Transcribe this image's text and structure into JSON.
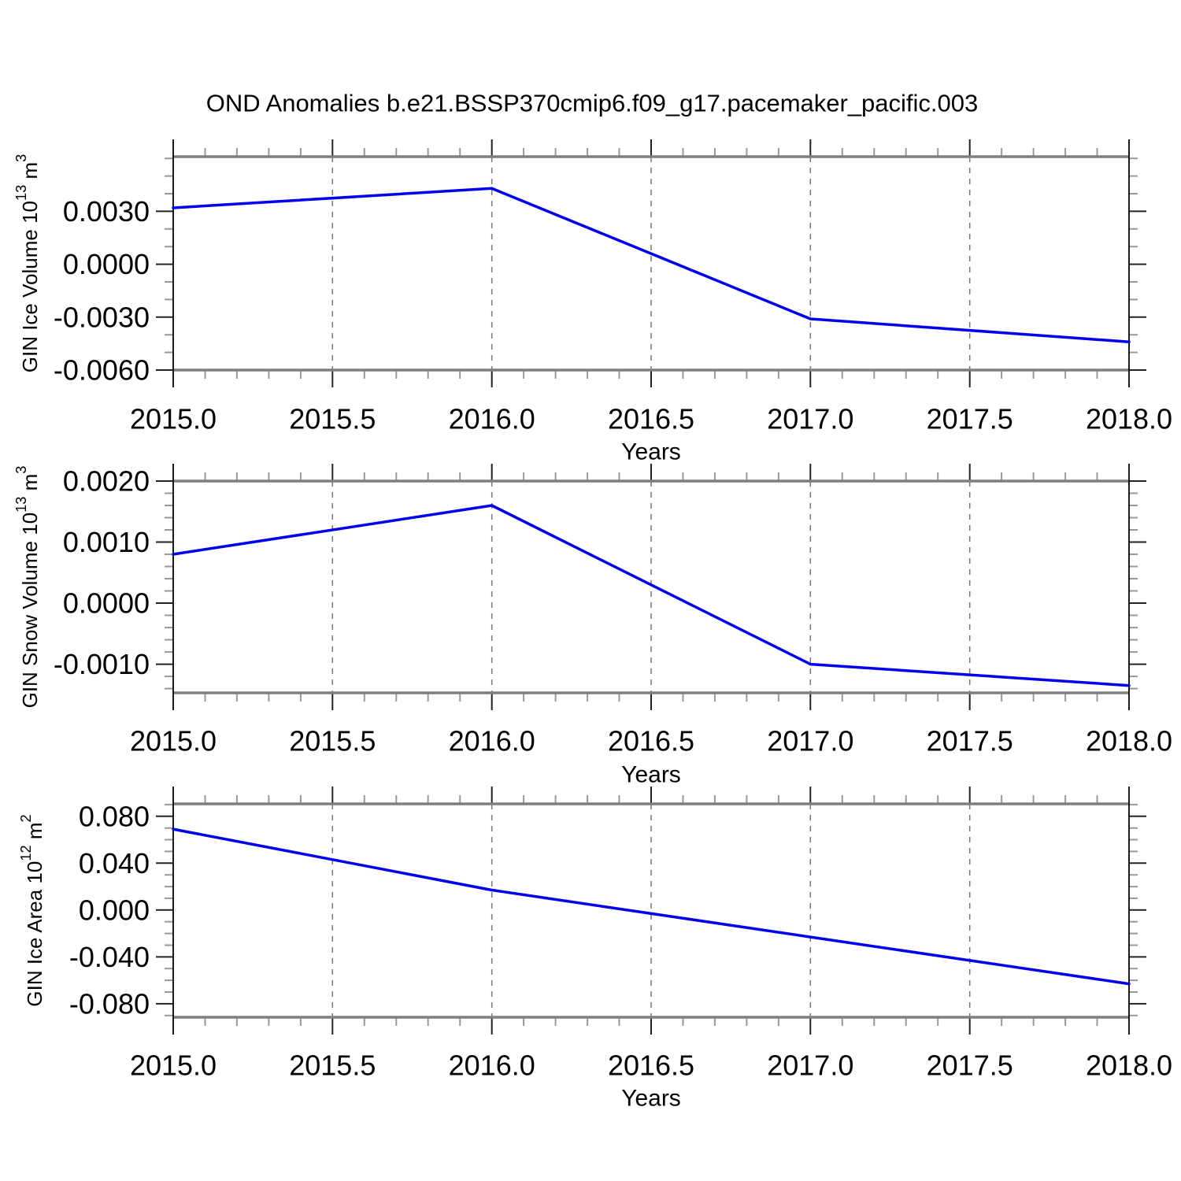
{
  "title": "OND Anomalies b.e21.BSSP370cmip6.f09_g17.pacemaker_pacific.003",
  "colors": {
    "line": "#0000ee",
    "grid": "#777777",
    "border": "#7f7f7f",
    "axis": "#1a1a1a",
    "tick_major": "#222222",
    "tick_minor": "#999999",
    "text": "#000000",
    "background": "#ffffff"
  },
  "x_axis": {
    "label": "Years",
    "min": 2015.0,
    "max": 2018.0,
    "major_step": 0.5,
    "minor_step": 0.1,
    "tick_labels": [
      "2015.0",
      "2015.5",
      "2016.0",
      "2016.5",
      "2017.0",
      "2017.5",
      "2018.0"
    ],
    "grid": "dashed-vertical-at-major-ticks"
  },
  "chart_data": [
    {
      "id": "gin-ice-volume",
      "type": "line",
      "ylabel": "GIN Ice Volume 10^13 m^3",
      "ylabel_segments": [
        {
          "t": "GIN Ice Volume 10"
        },
        {
          "t": "13",
          "sup": true
        },
        {
          "t": " m"
        },
        {
          "t": "3",
          "sup": true
        }
      ],
      "xlabel": "Years",
      "x": [
        2015,
        2016,
        2017,
        2018
      ],
      "values": [
        0.0032,
        0.0043,
        -0.0031,
        -0.0044
      ],
      "ylim": [
        -0.006,
        0.0061
      ],
      "ytick_values": [
        0.003,
        0.0,
        -0.003,
        -0.006
      ],
      "ytick_labels": [
        "0.0030",
        "0.0000",
        "-0.0030",
        "-0.0060"
      ],
      "y_minor_step": 0.001
    },
    {
      "id": "gin-snow-volume",
      "type": "line",
      "ylabel": "GIN Snow Volume 10^13 m^3",
      "ylabel_segments": [
        {
          "t": "GIN Snow Volume 10"
        },
        {
          "t": "13",
          "sup": true
        },
        {
          "t": " m"
        },
        {
          "t": "3",
          "sup": true
        }
      ],
      "xlabel": "Years",
      "x": [
        2015,
        2016,
        2017,
        2018
      ],
      "values": [
        0.0008,
        0.0016,
        -0.001,
        -0.00135
      ],
      "ylim": [
        -0.00147,
        0.002
      ],
      "ytick_values": [
        0.002,
        0.001,
        0.0,
        -0.001
      ],
      "ytick_labels": [
        "0.0020",
        "0.0010",
        "0.0000",
        "-0.0010"
      ],
      "y_minor_step": 0.0002
    },
    {
      "id": "gin-ice-area",
      "type": "line",
      "ylabel": "GIN Ice Area 10^12 m^2",
      "ylabel_segments": [
        {
          "t": "GIN Ice Area 10"
        },
        {
          "t": "12",
          "sup": true
        },
        {
          "t": " m"
        },
        {
          "t": "2",
          "sup": true
        }
      ],
      "xlabel": "Years",
      "x": [
        2015,
        2016,
        2017,
        2018
      ],
      "values": [
        0.069,
        0.017,
        -0.023,
        -0.063
      ],
      "ylim": [
        -0.0915,
        0.0906
      ],
      "ytick_values": [
        0.08,
        0.04,
        0.0,
        -0.04,
        -0.08
      ],
      "ytick_labels": [
        "0.080",
        "0.040",
        "0.000",
        "-0.040",
        "-0.080"
      ],
      "y_minor_step": 0.01
    }
  ]
}
